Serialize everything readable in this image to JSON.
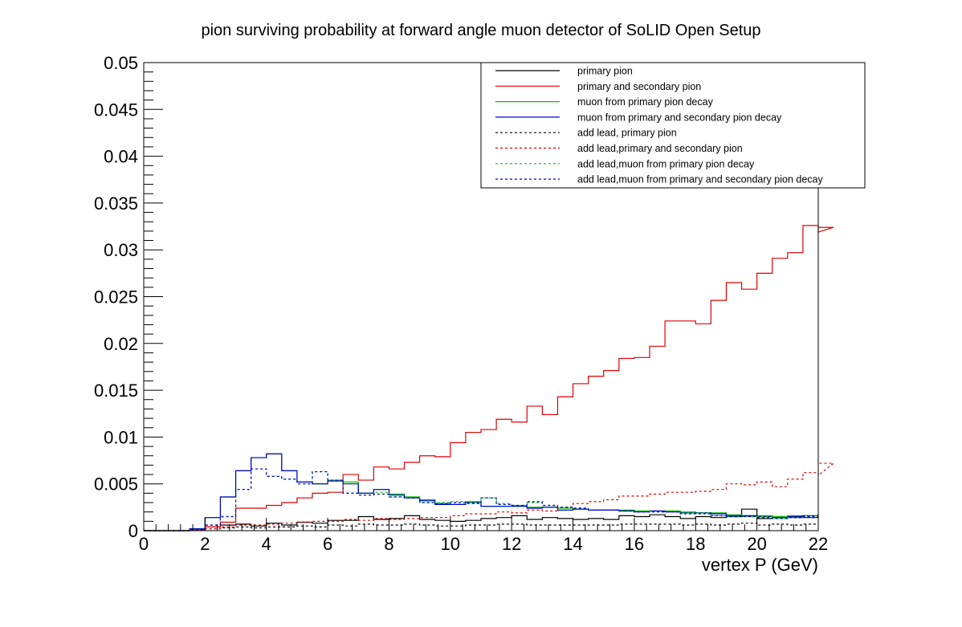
{
  "chart_data": {
    "type": "line",
    "title": "pion surviving probability at forward angle muon detector of SoLID Open Setup",
    "xlabel": "vertex P (GeV)",
    "ylabel": "",
    "xlim": [
      0,
      22
    ],
    "ylim": [
      0,
      0.05
    ],
    "x_ticks": [
      "0",
      "2",
      "4",
      "6",
      "8",
      "10",
      "12",
      "14",
      "16",
      "18",
      "20",
      "22"
    ],
    "y_ticks": [
      "0",
      "0.005",
      "0.01",
      "0.015",
      "0.02",
      "0.025",
      "0.03",
      "0.035",
      "0.04",
      "0.045",
      "0.05"
    ],
    "grid": false,
    "legend_position": "top-right",
    "histogram_step": true,
    "bin_width": 0.5,
    "x_start": 0,
    "series": [
      {
        "name": "primary pion",
        "color": "#000000",
        "dashed": false,
        "values": [
          0,
          0,
          0,
          0.0002,
          0.0004,
          0.0006,
          0.0007,
          0.0005,
          0.0008,
          0.0006,
          0.0009,
          0.0008,
          0.0011,
          0.0011,
          0.0015,
          0.0012,
          0.0013,
          0.0016,
          0.0012,
          0.0011,
          0.001,
          0.0011,
          0.0013,
          0.0014,
          0.0016,
          0.0012,
          0.0014,
          0.0013,
          0.0012,
          0.0013,
          0.0012,
          0.0016,
          0.0015,
          0.0017,
          0.0015,
          0.0013,
          0.0015,
          0.0014,
          0.0015,
          0.0023,
          0.0013,
          0.0015,
          0.0014,
          0.0014
        ]
      },
      {
        "name": "primary and secondary pion",
        "color": "#e00000",
        "dashed": false,
        "values": [
          0,
          0,
          0,
          0.0001,
          0.0004,
          0.0009,
          0.0024,
          0.0024,
          0.0027,
          0.003,
          0.0035,
          0.004,
          0.0041,
          0.006,
          0.0054,
          0.0068,
          0.0066,
          0.0073,
          0.008,
          0.0079,
          0.0094,
          0.0105,
          0.0108,
          0.0119,
          0.0116,
          0.0133,
          0.0124,
          0.0143,
          0.0157,
          0.0165,
          0.0171,
          0.0184,
          0.0185,
          0.0197,
          0.0224,
          0.0224,
          0.0221,
          0.0246,
          0.0265,
          0.0258,
          0.0275,
          0.0291,
          0.0297,
          0.0326,
          0.0319,
          0.0324
        ]
      },
      {
        "name": "muon from primary pion decay",
        "color": "#00c000",
        "dashed": false,
        "values": [
          0,
          0,
          0,
          0.0002,
          0.0014,
          0.0036,
          0.0064,
          0.0078,
          0.0082,
          0.0064,
          0.0052,
          0.005,
          0.0054,
          0.0052,
          0.004,
          0.0044,
          0.0039,
          0.0036,
          0.0033,
          0.0029,
          0.0028,
          0.0031,
          0.0026,
          0.0026,
          0.0026,
          0.0025,
          0.0025,
          0.0024,
          0.0023,
          0.0022,
          0.0022,
          0.0022,
          0.0021,
          0.0021,
          0.0021,
          0.002,
          0.0019,
          0.0019,
          0.0017,
          0.0016,
          0.0016,
          0.0015,
          0.0016,
          0.0016,
          0.0017
        ]
      },
      {
        "name": "muon from primary and secondary pion decay",
        "color": "#0000d0",
        "dashed": false,
        "values": [
          0,
          0,
          0,
          0.0002,
          0.0014,
          0.0036,
          0.0064,
          0.0078,
          0.0082,
          0.0064,
          0.0052,
          0.005,
          0.0053,
          0.005,
          0.004,
          0.0044,
          0.0038,
          0.0035,
          0.0032,
          0.0028,
          0.0028,
          0.003,
          0.0026,
          0.0026,
          0.0026,
          0.0024,
          0.0025,
          0.0022,
          0.0023,
          0.0022,
          0.0022,
          0.0021,
          0.002,
          0.0021,
          0.002,
          0.0019,
          0.0019,
          0.0018,
          0.0016,
          0.0016,
          0.0015,
          0.0014,
          0.0015,
          0.0016,
          0.0016
        ]
      },
      {
        "name": "add lead, primary pion",
        "color": "#000000",
        "dashed": true,
        "values": [
          0,
          0,
          0,
          0.0001,
          0.0002,
          0.0003,
          0.0004,
          0.0003,
          0.0004,
          0.0004,
          0.0005,
          0.0004,
          0.0006,
          0.0005,
          0.0007,
          0.0006,
          0.0006,
          0.0007,
          0.0006,
          0.0005,
          0.0005,
          0.0006,
          0.0006,
          0.0007,
          0.0007,
          0.0006,
          0.0006,
          0.0006,
          0.0006,
          0.0006,
          0.0006,
          0.0007,
          0.0007,
          0.0007,
          0.0007,
          0.0006,
          0.0007,
          0.0006,
          0.0007,
          0.0008,
          0.0006,
          0.0007,
          0.0006,
          0.0007
        ]
      },
      {
        "name": "add lead,primary and secondary pion",
        "color": "#e00000",
        "dashed": true,
        "values": [
          0,
          0,
          0,
          0.0001,
          0.0002,
          0.0004,
          0.0006,
          0.0006,
          0.0007,
          0.0008,
          0.0009,
          0.001,
          0.001,
          0.0012,
          0.0011,
          0.0013,
          0.0012,
          0.0013,
          0.0014,
          0.0014,
          0.0016,
          0.0018,
          0.0018,
          0.002,
          0.0019,
          0.0022,
          0.0021,
          0.0025,
          0.0029,
          0.0031,
          0.0033,
          0.0037,
          0.0037,
          0.0039,
          0.0041,
          0.0041,
          0.0042,
          0.0044,
          0.005,
          0.0049,
          0.0052,
          0.0047,
          0.0055,
          0.0062,
          0.0059,
          0.0072
        ]
      },
      {
        "name": "add lead,muon from primary pion decay",
        "color": "#00c000",
        "dashed": true,
        "values": [
          0,
          0,
          0,
          0.0001,
          0.0006,
          0.0015,
          0.0044,
          0.0066,
          0.0058,
          0.0055,
          0.005,
          0.0063,
          0.0054,
          0.004,
          0.0038,
          0.0041,
          0.0036,
          0.0036,
          0.003,
          0.003,
          0.0031,
          0.003,
          0.0035,
          0.0029,
          0.0027,
          0.003,
          0.0027,
          0.0025,
          0.0024,
          0.0022,
          0.0022,
          0.0021,
          0.0021,
          0.002,
          0.0021,
          0.0019,
          0.0019,
          0.0016,
          0.0015,
          0.0015,
          0.0015,
          0.0013,
          0.0014,
          0.0016,
          0.0019
        ]
      },
      {
        "name": "add lead,muon from primary and secondary pion decay",
        "color": "#0000d0",
        "dashed": true,
        "values": [
          0,
          0,
          0,
          0.0001,
          0.0006,
          0.0015,
          0.0044,
          0.0066,
          0.0058,
          0.0055,
          0.005,
          0.0063,
          0.0054,
          0.004,
          0.0038,
          0.0039,
          0.0036,
          0.0035,
          0.003,
          0.0029,
          0.003,
          0.0029,
          0.0035,
          0.0028,
          0.0027,
          0.0031,
          0.0027,
          0.0025,
          0.0024,
          0.0022,
          0.0022,
          0.0021,
          0.002,
          0.002,
          0.002,
          0.0018,
          0.0018,
          0.0016,
          0.0015,
          0.0015,
          0.0014,
          0.0013,
          0.0014,
          0.0015,
          0.0018
        ]
      }
    ]
  }
}
